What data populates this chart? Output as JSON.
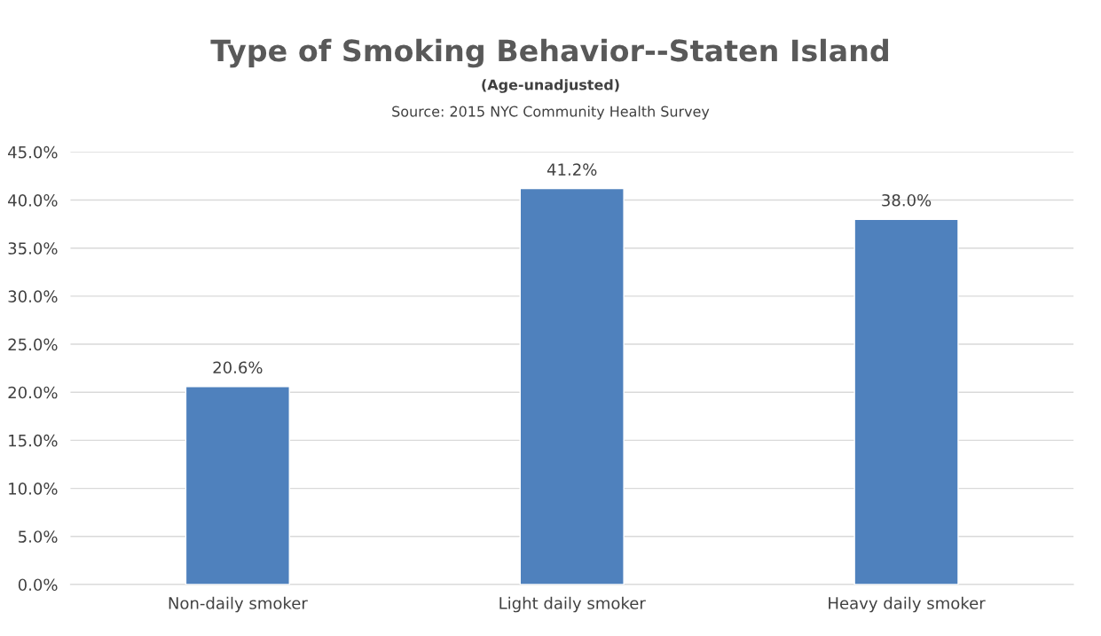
{
  "chart_data": {
    "type": "bar",
    "title": "Type of Smoking Behavior--Staten Island",
    "subtitle": "(Age-unadjusted)",
    "annotations": [
      "Source: 2015 NYC Community Health Survey"
    ],
    "categories": [
      "Non-daily smoker",
      "Light daily smoker",
      "Heavy daily smoker"
    ],
    "values": [
      20.6,
      41.2,
      38.0
    ],
    "color": "#4f81bd",
    "value_labels": [
      "20.6%",
      "41.2%",
      "38.0%"
    ],
    "ylim": [
      0,
      45
    ],
    "yticks": [
      {
        "value": 0,
        "label": "0.0%"
      },
      {
        "value": 5,
        "label": "5.0%"
      },
      {
        "value": 10,
        "label": "10.0%"
      },
      {
        "value": 15,
        "label": "15.0%"
      },
      {
        "value": 20,
        "label": "20.0%"
      },
      {
        "value": 25,
        "label": "25.0%"
      },
      {
        "value": 30,
        "label": "30.0%"
      },
      {
        "value": 35,
        "label": "35.0%"
      },
      {
        "value": 40,
        "label": "40.0%"
      },
      {
        "value": 45,
        "label": "45.0%"
      }
    ],
    "grid": "y",
    "legend": false
  }
}
